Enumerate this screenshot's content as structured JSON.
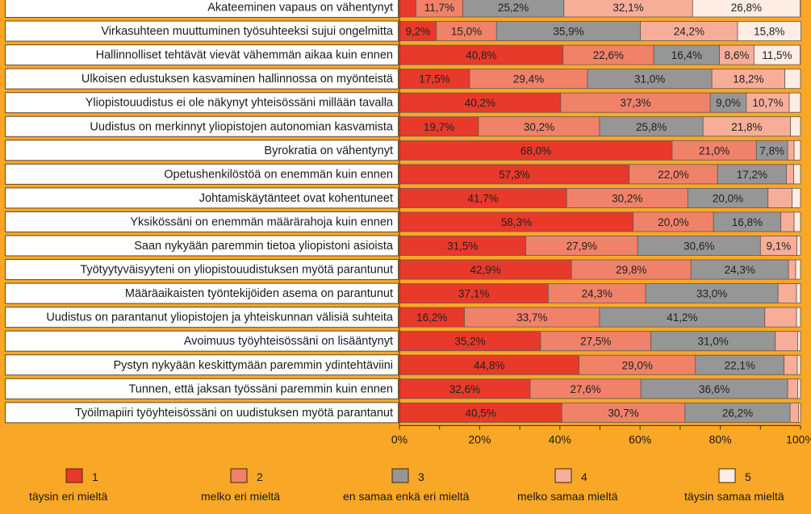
{
  "chart_data": {
    "type": "bar",
    "orientation": "horizontal",
    "stacked": true,
    "percent": true,
    "xlim": [
      0,
      100
    ],
    "xticks": [
      "0%",
      "20%",
      "40%",
      "60%",
      "80%",
      "100%"
    ],
    "legend_position": "bottom",
    "series": [
      {
        "code": "1",
        "name": "täysin eri mieltä",
        "color": "#E8392A"
      },
      {
        "code": "2",
        "name": "melko eri mieltä",
        "color": "#F0826A"
      },
      {
        "code": "3",
        "name": "en samaa enkä eri mieltä",
        "color": "#969696"
      },
      {
        "code": "4",
        "name": "melko samaa mieltä",
        "color": "#F7AE99"
      },
      {
        "code": "5",
        "name": "täysin samaa mieltä",
        "color": "#FDEDE4"
      }
    ],
    "rows": [
      {
        "label": "Akateeminen vapaus on vähentynyt",
        "values": [
          4.1,
          11.7,
          25.2,
          32.1,
          26.8
        ],
        "labels": [
          "",
          "11,7%",
          "25,2%",
          "32,1%",
          "26,8%"
        ]
      },
      {
        "label": "Virkasuhteen muuttuminen työsuhteeksi sujui ongelmitta",
        "values": [
          9.2,
          15.0,
          35.9,
          24.2,
          15.8
        ],
        "labels": [
          "9,2%",
          "15,0%",
          "35,9%",
          "24,2%",
          "15,8%"
        ]
      },
      {
        "label": "Hallinnolliset tehtävät vievät vähemmän aikaa kuin ennen",
        "values": [
          40.8,
          22.6,
          16.4,
          8.6,
          11.5
        ],
        "labels": [
          "40,8%",
          "22,6%",
          "16,4%",
          "8,6%",
          "11,5%"
        ]
      },
      {
        "label": "Ulkoisen edustuksen kasvaminen hallinnossa on myönteistä",
        "values": [
          17.5,
          29.4,
          31.0,
          18.2,
          3.9
        ],
        "labels": [
          "17,5%",
          "29,4%",
          "31,0%",
          "18,2%",
          ""
        ]
      },
      {
        "label": "Yliopistouudistus ei  ole näkynyt yhteisössäni millään tavalla",
        "values": [
          40.2,
          37.3,
          9.0,
          10.7,
          2.8
        ],
        "labels": [
          "40,2%",
          "37,3%",
          "9,0%",
          "10,7%",
          ""
        ]
      },
      {
        "label": "Uudistus on merkinnyt yliopistojen autonomian kasvamista",
        "values": [
          19.7,
          30.2,
          25.8,
          21.8,
          2.5
        ],
        "labels": [
          "19,7%",
          "30,2%",
          "25,8%",
          "21,8%",
          ""
        ]
      },
      {
        "label": "Byrokratia on vähentynyt",
        "values": [
          68.0,
          21.0,
          7.8,
          1.6,
          1.6
        ],
        "labels": [
          "68,0%",
          "21,0%",
          "7,8%",
          "",
          ""
        ]
      },
      {
        "label": "Opetushenkilöstöä on enemmän kuin ennen",
        "values": [
          57.3,
          22.0,
          17.2,
          1.8,
          1.7
        ],
        "labels": [
          "57,3%",
          "22,0%",
          "17,2%",
          "",
          ""
        ]
      },
      {
        "label": "Johtamiskäytänteet ovat kohentuneet",
        "values": [
          41.7,
          30.2,
          20.0,
          6.0,
          2.1
        ],
        "labels": [
          "41,7%",
          "30,2%",
          "20,0%",
          "",
          ""
        ]
      },
      {
        "label": "Yksikössäni on enemmän määrärahoja kuin ennen",
        "values": [
          58.3,
          20.0,
          16.8,
          3.3,
          1.6
        ],
        "labels": [
          "58,3%",
          "20,0%",
          "16,8%",
          "",
          ""
        ]
      },
      {
        "label": "Saan nykyään paremmin tietoa yliopistoni asioista",
        "values": [
          31.5,
          27.9,
          30.6,
          9.1,
          0.9
        ],
        "labels": [
          "31,5%",
          "27,9%",
          "30,6%",
          "9,1%",
          ""
        ]
      },
      {
        "label": "Työtyytyväisyyteni on yliopistouudistuksen myötä parantunut",
        "values": [
          42.9,
          29.8,
          24.3,
          1.8,
          1.2
        ],
        "labels": [
          "42,9%",
          "29,8%",
          "24,3%",
          "",
          ""
        ]
      },
      {
        "label": "Määräaikaisten työntekijöiden asema on parantunut",
        "values": [
          37.1,
          24.3,
          33.0,
          4.6,
          1.0
        ],
        "labels": [
          "37,1%",
          "24,3%",
          "33,0%",
          "",
          ""
        ]
      },
      {
        "label": "Uudistus on parantanut yliopistojen ja yhteiskunnan välisiä suhteita",
        "values": [
          16.2,
          33.7,
          41.2,
          7.9,
          1.0
        ],
        "labels": [
          "16,2%",
          "33,7%",
          "41,2%",
          "",
          ""
        ]
      },
      {
        "label": "Avoimuus työyhteisössäni on lisääntynyt",
        "values": [
          35.2,
          27.5,
          31.0,
          5.6,
          0.7
        ],
        "labels": [
          "35,2%",
          "27,5%",
          "31,0%",
          "",
          ""
        ]
      },
      {
        "label": "Pystyn nykyään keskittymään paremmin ydintehtäviini",
        "values": [
          44.8,
          29.0,
          22.1,
          3.3,
          0.8
        ],
        "labels": [
          "44,8%",
          "29,0%",
          "22,1%",
          "",
          ""
        ]
      },
      {
        "label": "Tunnen, että jaksan työssäni paremmin  kuin ennen",
        "values": [
          32.6,
          27.6,
          36.6,
          2.5,
          0.7
        ],
        "labels": [
          "32,6%",
          "27,6%",
          "36,6%",
          "",
          ""
        ]
      },
      {
        "label": "Työilmapiiri työyhteisössäni on uudistuksen myötä parantanut",
        "values": [
          40.5,
          30.7,
          26.2,
          2.1,
          0.5
        ],
        "labels": [
          "40,5%",
          "30,7%",
          "26,2%",
          "",
          ""
        ]
      }
    ]
  }
}
